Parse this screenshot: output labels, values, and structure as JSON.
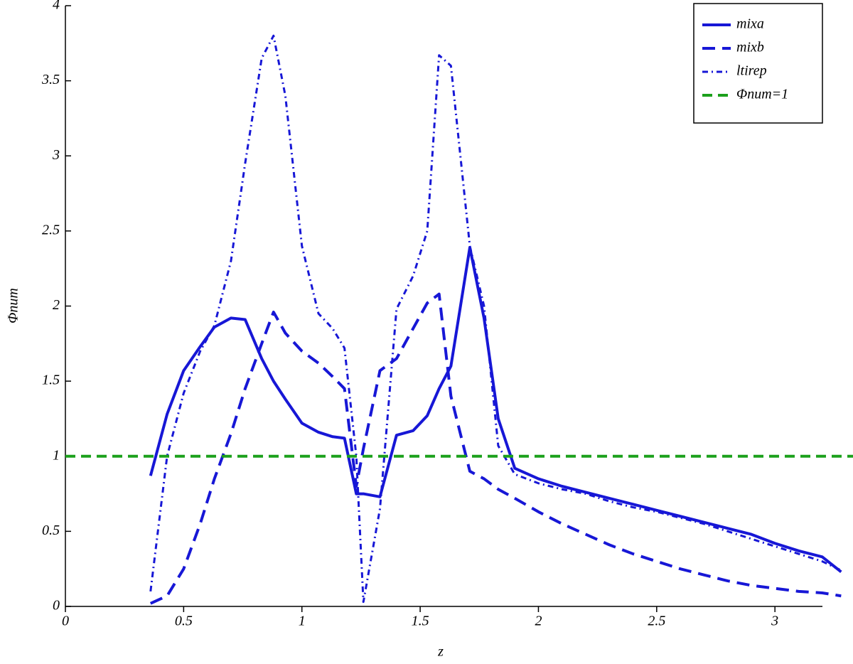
{
  "chart_data": {
    "type": "line",
    "xlabel": "z",
    "ylabel": "Φnum",
    "x": [
      0.36,
      0.43,
      0.5,
      0.57,
      0.63,
      0.7,
      0.76,
      0.83,
      0.88,
      0.93,
      1.0,
      1.07,
      1.13,
      1.18,
      1.23,
      1.26,
      1.33,
      1.4,
      1.47,
      1.53,
      1.58,
      1.63,
      1.71,
      1.77,
      1.83,
      1.9,
      2.0,
      2.1,
      2.2,
      2.3,
      2.4,
      2.5,
      2.6,
      2.7,
      2.8,
      2.9,
      3.0,
      3.1,
      3.2,
      3.28
    ],
    "series": [
      {
        "name": "mixa",
        "color": "#1717d6",
        "linestyle": "solid",
        "values": [
          0.87,
          1.28,
          1.57,
          1.73,
          1.86,
          1.92,
          1.91,
          1.65,
          1.5,
          1.38,
          1.22,
          1.16,
          1.13,
          1.12,
          0.75,
          0.75,
          0.73,
          1.14,
          1.17,
          1.27,
          1.45,
          1.6,
          2.39,
          1.92,
          1.25,
          0.92,
          0.85,
          0.8,
          0.76,
          0.72,
          0.68,
          0.64,
          0.6,
          0.56,
          0.52,
          0.48,
          0.42,
          0.37,
          0.33,
          0.23
        ]
      },
      {
        "name": "mixb",
        "color": "#1717d6",
        "linestyle": "dashed",
        "values": [
          0.02,
          0.07,
          0.25,
          0.55,
          0.85,
          1.15,
          1.45,
          1.75,
          1.96,
          1.82,
          1.7,
          1.62,
          1.53,
          1.45,
          0.8,
          1.05,
          1.57,
          1.65,
          1.85,
          2.02,
          2.08,
          1.4,
          0.9,
          0.85,
          0.78,
          0.72,
          0.63,
          0.55,
          0.48,
          0.41,
          0.35,
          0.3,
          0.25,
          0.21,
          0.17,
          0.14,
          0.12,
          0.1,
          0.09,
          0.07
        ]
      },
      {
        "name": "ltirep",
        "color": "#1717d6",
        "linestyle": "dashdot",
        "values": [
          0.1,
          1.0,
          1.42,
          1.7,
          1.87,
          2.3,
          2.95,
          3.65,
          3.8,
          3.4,
          2.4,
          1.95,
          1.85,
          1.72,
          1.0,
          0.03,
          0.65,
          1.98,
          2.2,
          2.5,
          3.67,
          3.6,
          2.4,
          2.0,
          1.07,
          0.88,
          0.82,
          0.78,
          0.75,
          0.7,
          0.66,
          0.63,
          0.59,
          0.55,
          0.5,
          0.45,
          0.4,
          0.35,
          0.3,
          0.24
        ]
      }
    ],
    "hlines": [
      {
        "name": "Φnum=1",
        "y": 1,
        "color": "#1ca01c",
        "linestyle": "dashed"
      }
    ],
    "xlim": [
      0,
      3.3
    ],
    "ylim": [
      0,
      4
    ],
    "xticks": [
      0,
      0.5,
      1,
      1.5,
      2,
      2.5,
      3
    ],
    "yticks": [
      0,
      0.5,
      1,
      1.5,
      2,
      2.5,
      3,
      3.5,
      4
    ],
    "grid": false,
    "legend": "upper right"
  }
}
